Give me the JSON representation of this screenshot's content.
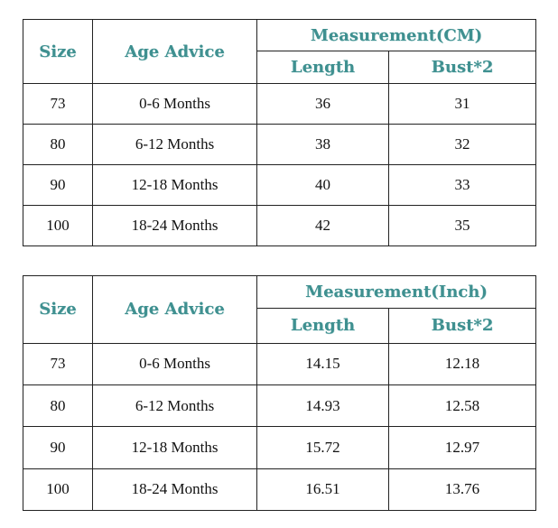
{
  "tables": [
    {
      "headers": {
        "size": "Size",
        "age": "Age Advice",
        "measurement": "Measurement(CM)",
        "length": "Length",
        "bust": "Bust*2"
      },
      "rows": [
        {
          "size": "73",
          "age": "0-6 Months",
          "length": "36",
          "bust": "31"
        },
        {
          "size": "80",
          "age": "6-12 Months",
          "length": "38",
          "bust": "32"
        },
        {
          "size": "90",
          "age": "12-18 Months",
          "length": "40",
          "bust": "33"
        },
        {
          "size": "100",
          "age": "18-24 Months",
          "length": "42",
          "bust": "35"
        }
      ]
    },
    {
      "headers": {
        "size": "Size",
        "age": "Age Advice",
        "measurement": "Measurement(Inch)",
        "length": "Length",
        "bust": "Bust*2"
      },
      "rows": [
        {
          "size": "73",
          "age": "0-6 Months",
          "length": "14.15",
          "bust": "12.18"
        },
        {
          "size": "80",
          "age": "6-12 Months",
          "length": "14.93",
          "bust": "12.58"
        },
        {
          "size": "90",
          "age": "12-18 Months",
          "length": "15.72",
          "bust": "12.97"
        },
        {
          "size": "100",
          "age": "18-24 Months",
          "length": "16.51",
          "bust": "13.76"
        }
      ]
    }
  ]
}
